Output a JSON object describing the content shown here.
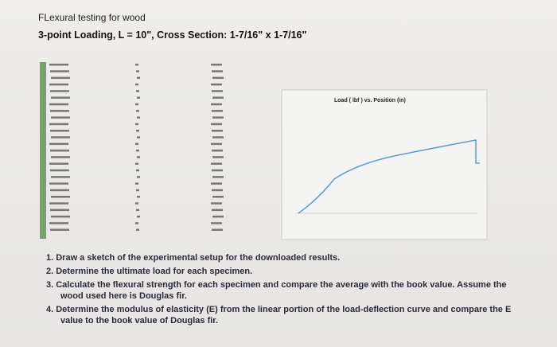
{
  "header": {
    "title": "FLexural testing for wood",
    "subtitle": "3-point Loading, L = 10\", Cross Section: 1-7/16\" x 1-7/16\""
  },
  "chart": {
    "title": "Load ( lbf ) vs. Position (in)"
  },
  "tasks": [
    "1. Draw a sketch of the experimental setup for the downloaded results.",
    "2. Determine the ultimate load for each specimen.",
    "3. Calculate the flexural strength for each specimen and compare the average with the book value. Assume the wood used here is Douglas fir.",
    "4. Determine the modulus of elasticity (E) from the linear portion of the load-deflection curve and compare the E value to the book value of Douglas fir."
  ]
}
